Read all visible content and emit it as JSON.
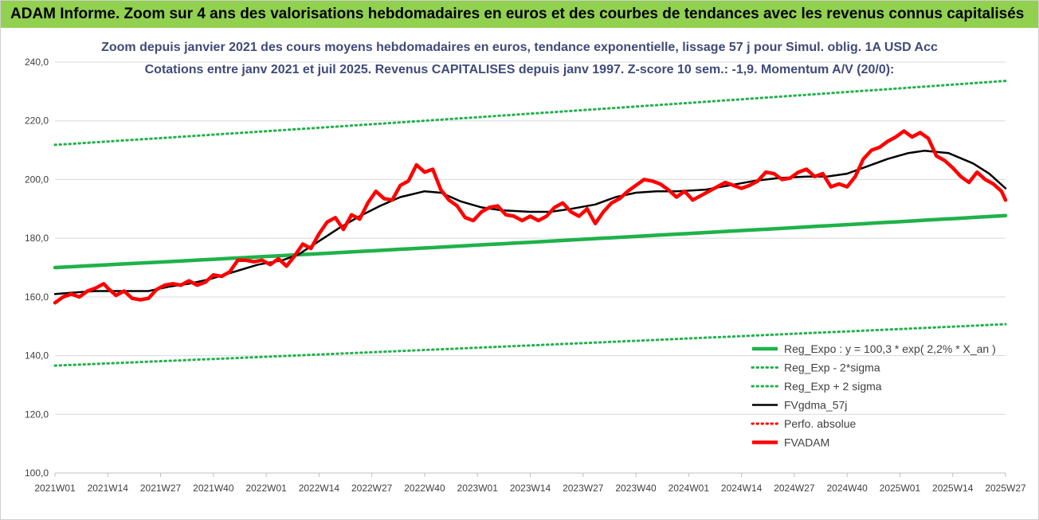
{
  "banner": {
    "text": "ADAM Informe. Zoom sur 4 ans des valorisations hebdomadaires en euros et des courbes de tendances avec les revenus connus capitalisés"
  },
  "chart_data": {
    "type": "line",
    "title": "Zoom depuis janvier 2021 des cours moyens hebdomadaires en euros, tendance exponentielle, lissage 57 j pour Simul. oblig. 1A USD Acc",
    "subtitle": "Cotations entre janv 2021 et juil 2025. Revenus CAPITALISES depuis janv 1997. Z-score 10 sem.: -1,9. Momentum A/V (20/0):",
    "xlabel": "",
    "ylabel": "",
    "ylim": [
      100,
      240
    ],
    "yticks": [
      100,
      120,
      140,
      160,
      180,
      200,
      220,
      240
    ],
    "ytick_labels": [
      "100,0",
      "120,0",
      "140,0",
      "160,0",
      "180,0",
      "200,0",
      "220,0",
      "240,0"
    ],
    "xlim": [
      0,
      234
    ],
    "xticks": [
      0,
      13,
      26,
      39,
      52,
      65,
      78,
      91,
      104,
      117,
      130,
      143,
      156,
      169,
      182,
      195,
      208,
      221,
      234
    ],
    "xtick_labels": [
      "2021W01",
      "2021W14",
      "2021W27",
      "2021W40",
      "2022W01",
      "2022W14",
      "2022W27",
      "2022W40",
      "2023W01",
      "2023W14",
      "2023W27",
      "2023W40",
      "2024W01",
      "2024W14",
      "2024W27",
      "2024W40",
      "2025W01",
      "2025W14",
      "2025W27"
    ],
    "grid": "horizontal",
    "legend_position": "bottom-right",
    "series": [
      {
        "name": "Reg_Expo : y = 100,3 * exp( 2,2% * X_an )",
        "color": "#1fb24a",
        "style": "solid",
        "x": [
          0,
          234
        ],
        "values": [
          170.0,
          187.7
        ],
        "curve": "exponential"
      },
      {
        "name": "Reg_Exp - 2*sigma",
        "color": "#1fb24a",
        "style": "dotted",
        "x": [
          0,
          234
        ],
        "values": [
          136.6,
          150.7
        ],
        "curve": "exponential"
      },
      {
        "name": "Reg_Exp + 2 sigma",
        "color": "#1fb24a",
        "style": "dotted",
        "x": [
          0,
          234
        ],
        "values": [
          211.8,
          233.6
        ],
        "curve": "exponential"
      },
      {
        "name": "FVgdma_57j",
        "color": "#000000",
        "style": "solid",
        "x": [
          0,
          5,
          10,
          13,
          18,
          23,
          28,
          33,
          38,
          44,
          50,
          56,
          60,
          65,
          70,
          75,
          80,
          85,
          91,
          95,
          100,
          105,
          110,
          117,
          122,
          127,
          133,
          138,
          143,
          148,
          153,
          160,
          166,
          172,
          178,
          185,
          190,
          195,
          200,
          205,
          210,
          214,
          220,
          226,
          230,
          234
        ],
        "values": [
          161.0,
          161.5,
          162.0,
          162.0,
          162.0,
          162.0,
          163.5,
          164.5,
          166.0,
          168.5,
          171.0,
          172.5,
          174.5,
          179.0,
          183.5,
          187.5,
          191.0,
          194.0,
          196.0,
          195.5,
          192.5,
          190.5,
          189.5,
          189.0,
          189.0,
          190.0,
          191.5,
          194.0,
          195.5,
          196.0,
          196.0,
          196.5,
          198.0,
          199.5,
          200.5,
          201.0,
          201.0,
          202.0,
          204.5,
          207.0,
          209.0,
          209.8,
          209.0,
          205.5,
          202.0,
          197.0
        ]
      },
      {
        "name": "Perfo. absolue",
        "color": "#ff0000",
        "style": "dotted",
        "x": [],
        "values": []
      },
      {
        "name": "FVADAM",
        "color": "#ff0000",
        "style": "solid",
        "x": [
          0,
          2,
          4,
          6,
          8,
          10,
          12,
          13,
          15,
          17,
          19,
          21,
          23,
          25,
          27,
          29,
          31,
          33,
          35,
          37,
          39,
          41,
          43,
          45,
          47,
          49,
          51,
          53,
          55,
          57,
          59,
          61,
          63,
          65,
          67,
          69,
          71,
          73,
          75,
          77,
          79,
          81,
          83,
          85,
          87,
          89,
          91,
          93,
          95,
          97,
          99,
          101,
          103,
          105,
          107,
          109,
          111,
          113,
          115,
          117,
          119,
          121,
          123,
          125,
          127,
          129,
          131,
          133,
          135,
          137,
          139,
          141,
          143,
          145,
          147,
          149,
          151,
          153,
          155,
          157,
          159,
          161,
          163,
          165,
          167,
          169,
          171,
          173,
          175,
          177,
          179,
          181,
          183,
          185,
          187,
          189,
          191,
          193,
          195,
          197,
          199,
          201,
          203,
          205,
          207,
          209,
          211,
          213,
          215,
          217,
          219,
          221,
          223,
          225,
          227,
          229,
          231,
          233,
          234
        ],
        "values": [
          158.0,
          160.0,
          161.0,
          160.0,
          162.0,
          163.0,
          164.5,
          163.0,
          160.5,
          162.0,
          159.5,
          159.0,
          159.5,
          162.5,
          164.0,
          164.5,
          164.0,
          165.5,
          164.0,
          165.0,
          167.5,
          167.0,
          168.5,
          172.5,
          172.5,
          172.0,
          172.5,
          171.0,
          173.0,
          170.5,
          174.0,
          178.0,
          176.5,
          181.5,
          185.5,
          187.0,
          183.0,
          188.0,
          186.5,
          192.0,
          196.0,
          193.5,
          193.0,
          198.0,
          199.5,
          205.0,
          202.5,
          203.5,
          196.5,
          193.0,
          191.0,
          187.0,
          186.0,
          189.0,
          190.5,
          191.0,
          188.0,
          187.5,
          186.0,
          187.5,
          186.0,
          187.5,
          190.5,
          192.0,
          189.0,
          187.5,
          190.0,
          185.0,
          189.0,
          192.0,
          193.5,
          196.0,
          198.0,
          200.0,
          199.5,
          198.5,
          196.5,
          194.0,
          196.0,
          193.0,
          194.5,
          196.0,
          197.5,
          199.0,
          198.0,
          197.0,
          198.0,
          199.5,
          202.5,
          202.0,
          200.0,
          200.5,
          202.5,
          203.5,
          201.0,
          202.0,
          197.5,
          198.5,
          197.5,
          201.0,
          207.0,
          210.0,
          211.0,
          213.0,
          214.5,
          216.5,
          214.5,
          216.0,
          214.0,
          208.0,
          206.5,
          204.0,
          201.0,
          199.0,
          202.5,
          200.0,
          198.5,
          196.0,
          193.0
        ]
      }
    ]
  }
}
